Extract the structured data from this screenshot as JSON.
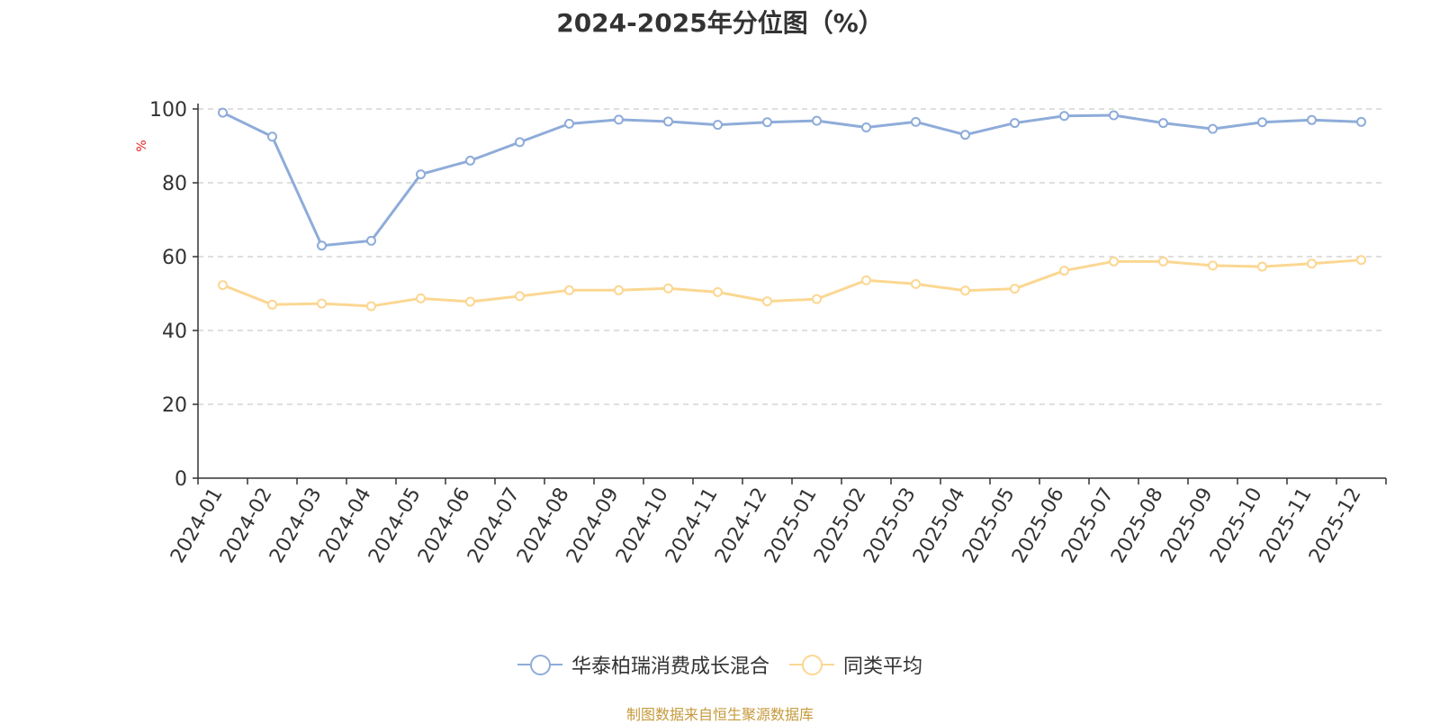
{
  "title": "2024-2025年分位图（%）",
  "source_note": "制图数据来自恒生聚源数据库",
  "colors": {
    "series1": "#8eacd9",
    "series2": "#fbd792",
    "ylabel": "#e02020",
    "grid": "#cccccc",
    "axis": "#333333",
    "text": "#333333"
  },
  "chart_data": {
    "type": "line",
    "title": "2024-2025年分位图（%）",
    "ylabel": "%",
    "xlabel": "",
    "ylim": [
      0,
      100
    ],
    "yticks": [
      0,
      20,
      40,
      60,
      80,
      100
    ],
    "grid": "horizontal dashed",
    "legend_position": "bottom-center",
    "categories": [
      "2024-01",
      "2024-02",
      "2024-03",
      "2024-04",
      "2024-05",
      "2024-06",
      "2024-07",
      "2024-08",
      "2024-09",
      "2024-10",
      "2024-11",
      "2024-12",
      "2025-01",
      "2025-02",
      "2025-03",
      "2025-04",
      "2025-05",
      "2025-06",
      "2025-07",
      "2025-08",
      "2025-09",
      "2025-10",
      "2025-11",
      "2025-12"
    ],
    "series": [
      {
        "name": "华泰柏瑞消费成长混合",
        "values": [
          99,
          92.5,
          63,
          64.3,
          82.3,
          86,
          91,
          96,
          97.1,
          96.6,
          95.7,
          96.4,
          96.8,
          95,
          96.5,
          93,
          96.2,
          98.1,
          98.3,
          96.2,
          94.6,
          96.4,
          97,
          96.5
        ]
      },
      {
        "name": "同类平均",
        "values": [
          52.3,
          47,
          47.3,
          46.6,
          48.7,
          47.8,
          49.3,
          50.9,
          50.9,
          51.4,
          50.4,
          47.9,
          48.5,
          53.6,
          52.6,
          50.8,
          51.3,
          56.2,
          58.7,
          58.7,
          57.6,
          57.3,
          58.1,
          59.1
        ]
      }
    ]
  }
}
